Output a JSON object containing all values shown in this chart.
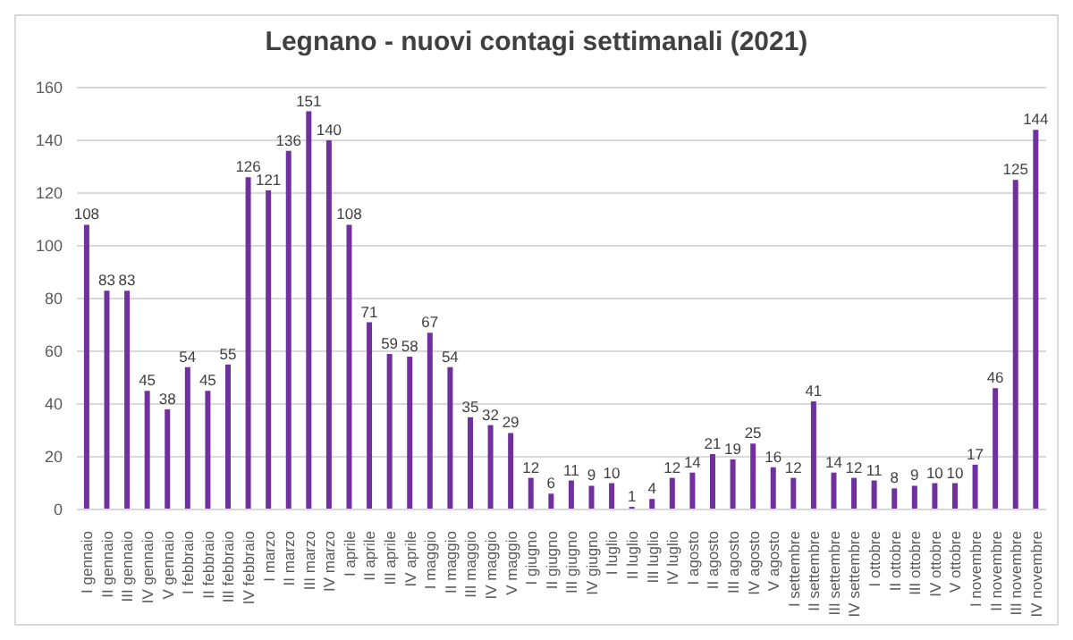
{
  "chart_data": {
    "type": "bar",
    "title": "Legnano - nuovi contagi settimanali (2021)",
    "categories": [
      "I gennaio",
      "II gennaio",
      "III gennaio",
      "IV gennaio",
      "V gennaio",
      "I febbraio",
      "II febbraio",
      "III febbraio",
      "IV febbraio",
      "I marzo",
      "II marzo",
      "III marzo",
      "IV marzo",
      "I aprile",
      "II aprile",
      "III aprile",
      "IV aprile",
      "I maggio",
      "II maggio",
      "III maggio",
      "IV maggio",
      "V maggio",
      "I giugno",
      "II giugno",
      "III giugno",
      "IV giugno",
      "I luglio",
      "II luglio",
      "III luglio",
      "IV luglio",
      "I agosto",
      "II agosto",
      "III agosto",
      "IV agosto",
      "V agosto",
      "I settembre",
      "II settembre",
      "III settembre",
      "IV settembre",
      "I ottobre",
      "II ottobre",
      "III ottobre",
      "IV ottobre",
      "V ottobre",
      "I novembre",
      "II novembre",
      "III novembre",
      "IV novembre"
    ],
    "values": [
      108,
      83,
      83,
      45,
      38,
      54,
      45,
      55,
      126,
      121,
      136,
      151,
      140,
      108,
      71,
      59,
      58,
      67,
      54,
      35,
      32,
      29,
      12,
      6,
      11,
      9,
      10,
      1,
      4,
      12,
      14,
      21,
      19,
      25,
      16,
      12,
      41,
      14,
      12,
      11,
      8,
      9,
      10,
      10,
      17,
      46,
      125,
      144
    ],
    "color": "#7030a0",
    "ylim": [
      0,
      160
    ],
    "yticks": [
      0,
      20,
      40,
      60,
      80,
      100,
      120,
      140,
      160
    ],
    "grid": "y",
    "data_labels": true
  }
}
